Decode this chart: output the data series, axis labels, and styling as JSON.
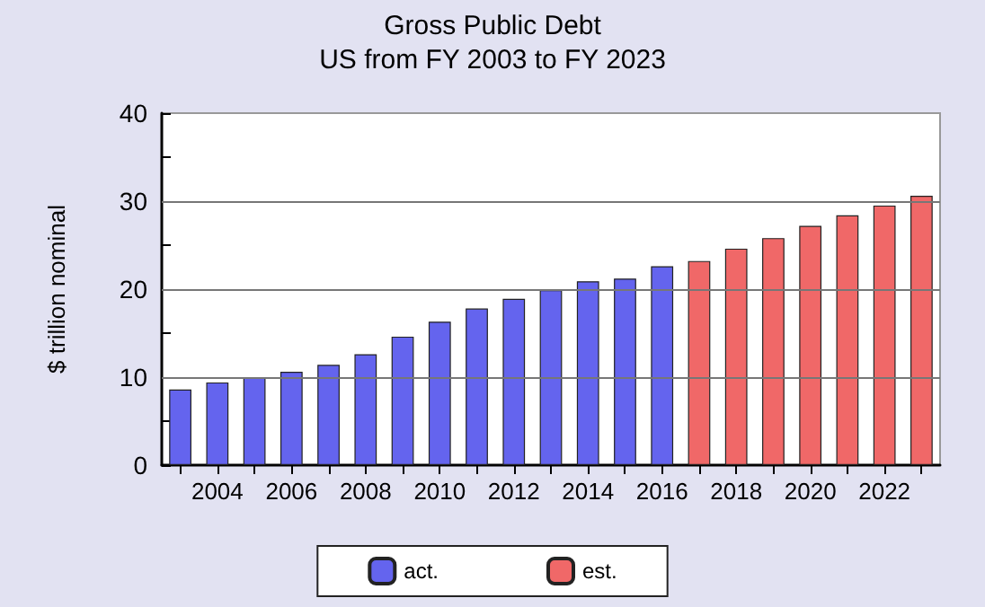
{
  "chart_data": {
    "type": "bar",
    "title": "Gross Public Debt",
    "subtitle": "US from FY 2003 to FY 2023",
    "ylabel": "$ trillion nominal",
    "categories": [
      null,
      "2004",
      null,
      "2006",
      null,
      "2008",
      null,
      "2010",
      null,
      "2012",
      null,
      "2014",
      null,
      "2016",
      null,
      "2018",
      null,
      "2020",
      null,
      "2022",
      null
    ],
    "series": [
      {
        "name": "act.",
        "color": "#6464ee",
        "values": [
          8.6,
          9.4,
          10.0,
          10.6,
          11.4,
          12.6,
          14.6,
          16.3,
          17.8,
          18.9,
          19.9,
          20.9,
          21.2,
          22.6,
          null,
          null,
          null,
          null,
          null,
          null,
          null
        ]
      },
      {
        "name": "est.",
        "color": "#f06868",
        "values": [
          null,
          null,
          null,
          null,
          null,
          null,
          null,
          null,
          null,
          null,
          null,
          null,
          null,
          null,
          23.2,
          24.6,
          25.8,
          27.2,
          28.4,
          29.5,
          30.6
        ]
      }
    ],
    "stacked": true,
    "ylim": [
      0,
      40
    ],
    "yticks": [
      0,
      {
        "value": 5,
        "label": null
      },
      10,
      {
        "value": 15,
        "label": null
      },
      20,
      {
        "value": 25,
        "label": null
      },
      30,
      {
        "value": 35,
        "label": null
      },
      40
    ],
    "grid": "y",
    "legend": "bottom"
  }
}
